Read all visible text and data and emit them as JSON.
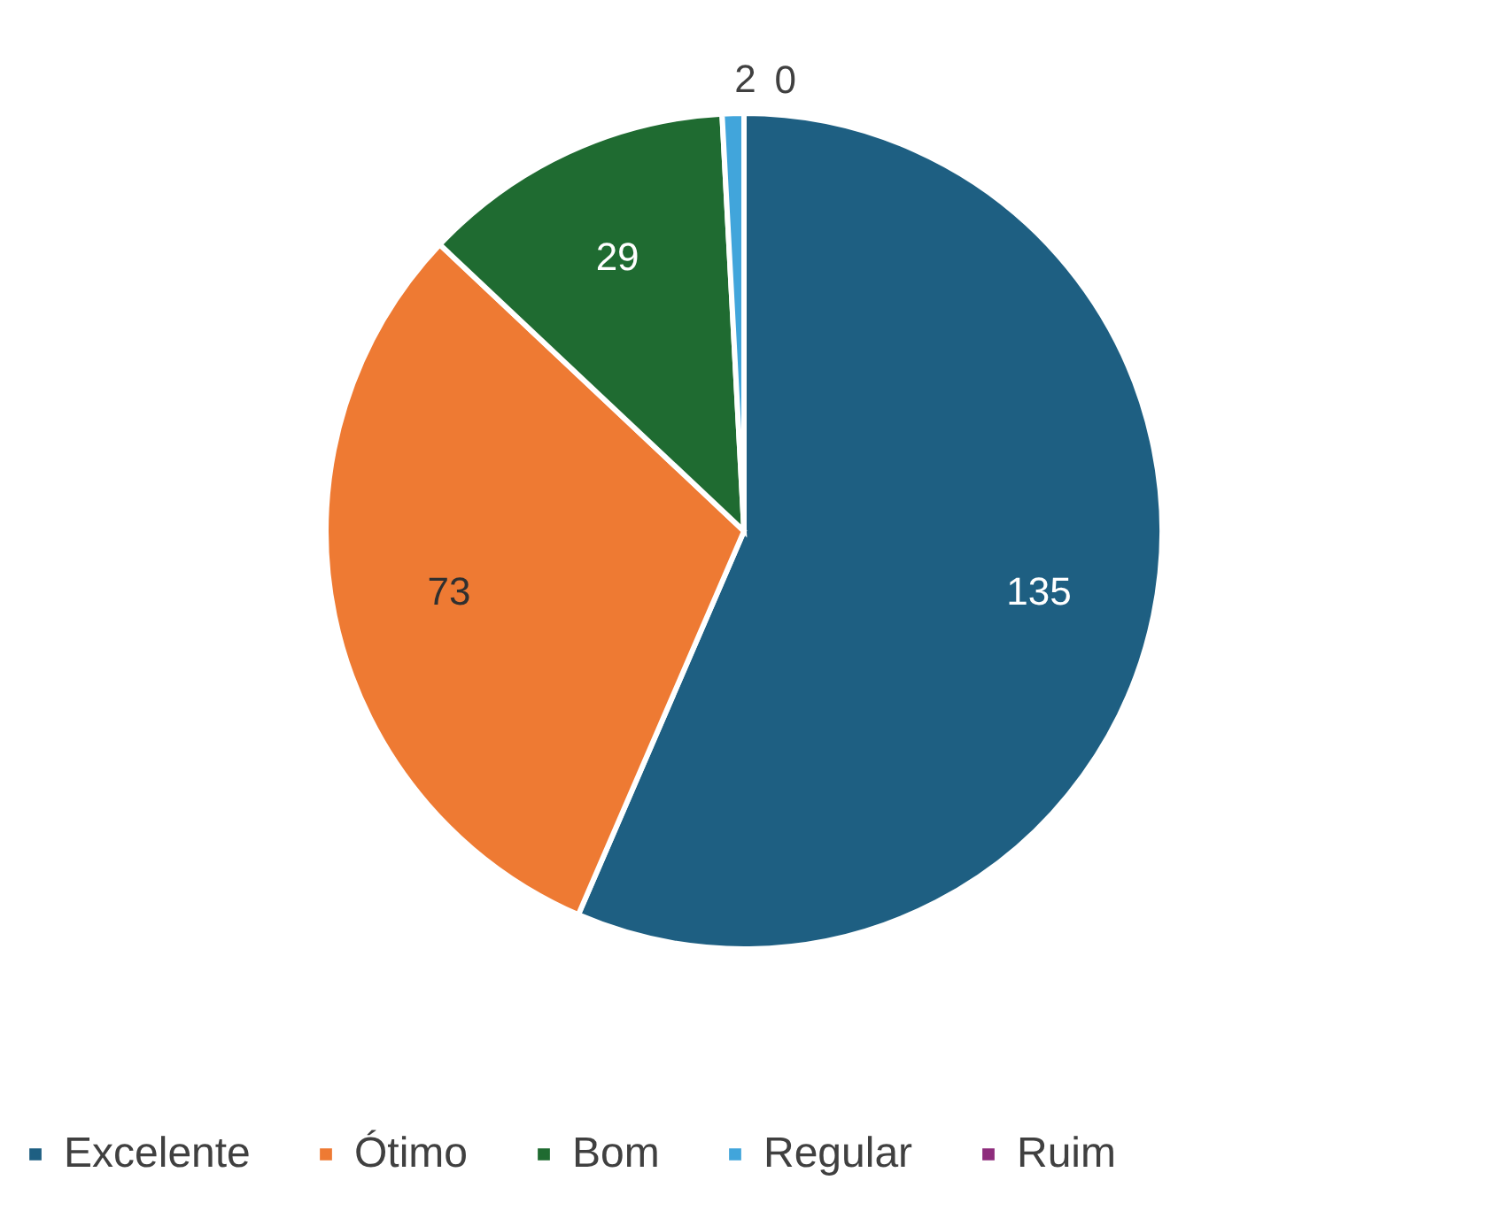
{
  "chart_data": {
    "type": "pie",
    "categories": [
      "Excelente",
      "Ótimo",
      "Bom",
      "Regular",
      "Ruim"
    ],
    "values": [
      135,
      73,
      29,
      2,
      0
    ],
    "colors": [
      "#1e5f82",
      "#ee7a33",
      "#1f6b31",
      "#41a5db",
      "#8e2c7c"
    ],
    "value_labels": [
      "135",
      "73",
      "29",
      "2",
      "0"
    ],
    "legend": "bottom"
  }
}
